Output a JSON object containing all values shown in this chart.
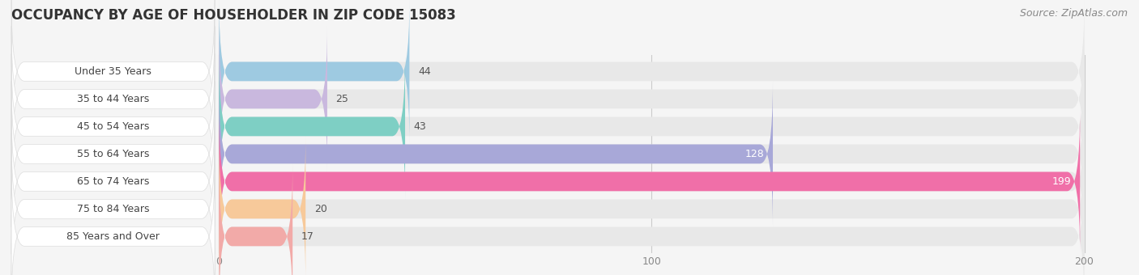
{
  "title": "OCCUPANCY BY AGE OF HOUSEHOLDER IN ZIP CODE 15083",
  "source": "Source: ZipAtlas.com",
  "categories": [
    "Under 35 Years",
    "35 to 44 Years",
    "45 to 54 Years",
    "55 to 64 Years",
    "65 to 74 Years",
    "75 to 84 Years",
    "85 Years and Over"
  ],
  "values": [
    44,
    25,
    43,
    128,
    199,
    20,
    17
  ],
  "bar_colors": [
    "#9ecae1",
    "#c9b8de",
    "#7ecfc4",
    "#a8a8d8",
    "#f06fa8",
    "#f7c99a",
    "#f2aaa8"
  ],
  "xlim": [
    0,
    200
  ],
  "xticks": [
    0,
    100,
    200
  ],
  "background_color": "#f5f5f5",
  "bar_bg_color": "#e8e8e8",
  "label_bg_color": "#ffffff",
  "title_fontsize": 12,
  "source_fontsize": 9,
  "label_fontsize": 9,
  "value_fontsize": 9
}
